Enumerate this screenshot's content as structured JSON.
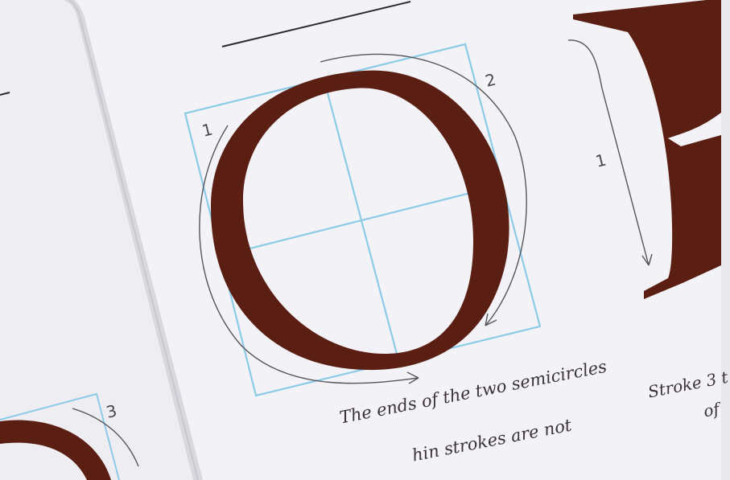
{
  "book": {
    "colors": {
      "page": "#f3f2f6",
      "left_page": "#eeedf1",
      "letter": "#5a1e12",
      "guide": "#8ccbe8",
      "arrow": "#55555a",
      "rule": "#2a2a2a"
    },
    "letter_o": {
      "glyph": "O"
    },
    "letter_p": {
      "glyph": "P"
    },
    "stroke_numbers": {
      "o_first": "1",
      "o_second": "2",
      "p_first": "1",
      "lower_left": "3"
    },
    "captions": {
      "o_caption_line1": "The ends of the two semicircles",
      "o_caption_line2": "hin strokes are not",
      "p_caption_line1": "Stroke 3 t",
      "p_caption_line2": "of"
    }
  }
}
